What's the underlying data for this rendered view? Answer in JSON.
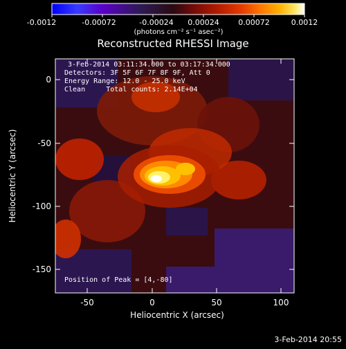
{
  "colorbar": {
    "tick_labels": [
      "-0.0012",
      "-0.00072",
      "-0.00024",
      "0.00024",
      "0.00072",
      "0.0012"
    ],
    "units_label": "(photons cm⁻² s⁻¹ asec⁻²)",
    "palette": [
      "#0000ff",
      "#3a3aff",
      "#5a00c8",
      "#2e1a55",
      "#2a0a12",
      "#6b0a0a",
      "#b01a00",
      "#e53b00",
      "#ff7a00",
      "#ffb000",
      "#ffe45c",
      "#ffffff"
    ]
  },
  "plot": {
    "title": "Reconstructed RHESSI Image",
    "time_range": "3-Feb-2014 03:11:34.000 to 03:17:34.000",
    "detectors": "Detectors: 3F 5F 6F 7F 8F 9F, Att 0",
    "energy_range": "Energy Range: 12.0 - 25.0 keV",
    "method_counts": "Clean     Total counts: 2.14E+04",
    "peak_label": "Position of Peak = [4,-80]",
    "x_axis_label": "Heliocentric X (arcsec)",
    "y_axis_label": "Heliocentric Y (arcsec)",
    "x_ticks": [
      "-50",
      "0",
      "50",
      "100"
    ],
    "y_ticks": [
      "0",
      "-50",
      "-100",
      "-150"
    ]
  },
  "footer": {
    "timestamp": "3-Feb-2014 20:55"
  }
}
